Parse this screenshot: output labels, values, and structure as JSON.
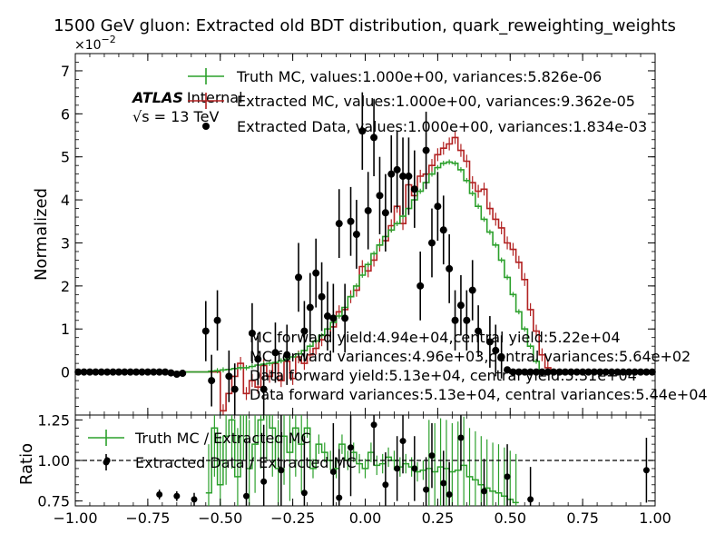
{
  "chart_data": [
    {
      "type": "line",
      "panel": "main",
      "title": "1500 GeV gluon: Extracted old BDT distribution, quark_reweighting_weights",
      "ylabel": "Normalized",
      "y_multiplier": "×10",
      "y_multiplier_exp": "−2",
      "xlim": [
        -1.0,
        1.0
      ],
      "ylim": [
        -1.0,
        7.4
      ],
      "y_ticks": [
        0,
        1,
        2,
        3,
        4,
        5,
        6,
        7
      ],
      "y_tick_labels": [
        "0",
        "1",
        "2",
        "3",
        "4",
        "5",
        "6",
        "7"
      ],
      "atlas_label": "ATLAS",
      "atlas_sublabel": "Internal",
      "energy_label": "√s = 13 TeV",
      "legend": [
        {
          "label": "Truth MC, values:1.000e+00, variances:5.826e-06",
          "color": "#2ca02c",
          "marker": "errorbar-line"
        },
        {
          "label": "Extracted MC, values:1.000e+00, variances:9.362e-05",
          "color": "#b22222",
          "marker": "errorbar-line"
        },
        {
          "label": "Extracted Data, values:1.000e+00, variances:1.834e-03",
          "color": "#000000",
          "marker": "point"
        }
      ],
      "annotations": [
        "MC forward yield:4.94e+04,central yield:5.22e+04",
        "MC forward variances:4.96e+03,central variances:5.64e+02",
        "Data forward yield:5.13e+04, central yield:5.31e+04",
        "Data forward variances:5.13e+04, central variances:5.44e+04"
      ],
      "bin_edges_start": -1.0,
      "bin_width": 0.02,
      "series": [
        {
          "name": "Truth MC",
          "color": "#2ca02c",
          "values": [
            0,
            0,
            0,
            0,
            0,
            0,
            0,
            0,
            0,
            0,
            0,
            0,
            0,
            0,
            0,
            0,
            0,
            0,
            0,
            0,
            0,
            0,
            0,
            0.02,
            0.03,
            0.05,
            0.06,
            0.08,
            0.1,
            0.1,
            0.13,
            0.16,
            0.18,
            0.2,
            0.22,
            0.26,
            0.3,
            0.35,
            0.42,
            0.5,
            0.6,
            0.72,
            0.85,
            1.0,
            1.15,
            1.3,
            1.5,
            1.75,
            2.0,
            2.25,
            2.5,
            2.75,
            2.95,
            3.15,
            3.3,
            3.45,
            3.62,
            3.8,
            4.0,
            4.2,
            4.4,
            4.6,
            4.75,
            4.85,
            4.88,
            4.85,
            4.7,
            4.45,
            4.15,
            3.85,
            3.55,
            3.25,
            2.95,
            2.6,
            2.2,
            1.8,
            1.4,
            1.0,
            0.6,
            0.25,
            0,
            0,
            0,
            0,
            0,
            0,
            0,
            0,
            0,
            0,
            0,
            0,
            0,
            0,
            0,
            0,
            0,
            0,
            0,
            0
          ]
        },
        {
          "name": "Extracted MC",
          "color": "#b22222",
          "values": [
            0,
            0,
            0,
            0,
            0,
            0,
            0,
            0,
            0,
            0,
            0,
            0,
            0,
            0,
            0,
            0,
            0,
            0,
            0,
            0,
            0,
            0,
            0,
            0,
            0,
            -0.9,
            -0.5,
            -0.1,
            0.2,
            -0.5,
            -0.2,
            -0.35,
            0.15,
            -0.1,
            0.2,
            -0.2,
            0.25,
            -0.15,
            0.35,
            0.2,
            0.4,
            0.55,
            0.75,
            0.85,
            1.05,
            1.4,
            1.45,
            1.75,
            1.9,
            2.45,
            2.35,
            2.6,
            2.95,
            3.05,
            3.4,
            3.85,
            3.45,
            4.35,
            4.1,
            4.55,
            4.6,
            4.8,
            5.05,
            5.2,
            5.3,
            5.45,
            5.15,
            4.9,
            4.4,
            4.2,
            4.25,
            3.8,
            3.55,
            3.35,
            3.0,
            2.85,
            2.55,
            2.15,
            1.45,
            0.95,
            0.4,
            0.1,
            0,
            0,
            0,
            0,
            0,
            0,
            0,
            0,
            0,
            0,
            0,
            0,
            0,
            0,
            0,
            0,
            0,
            0
          ]
        },
        {
          "name": "Extracted Data",
          "color": "#000000",
          "points": [
            {
              "x": -0.99,
              "y": 0
            },
            {
              "x": -0.97,
              "y": 0
            },
            {
              "x": -0.95,
              "y": 0
            },
            {
              "x": -0.93,
              "y": 0
            },
            {
              "x": -0.91,
              "y": 0
            },
            {
              "x": -0.89,
              "y": 0
            },
            {
              "x": -0.87,
              "y": 0
            },
            {
              "x": -0.85,
              "y": 0
            },
            {
              "x": -0.83,
              "y": 0
            },
            {
              "x": -0.81,
              "y": 0
            },
            {
              "x": -0.79,
              "y": 0
            },
            {
              "x": -0.77,
              "y": 0
            },
            {
              "x": -0.75,
              "y": 0
            },
            {
              "x": -0.73,
              "y": 0
            },
            {
              "x": -0.71,
              "y": 0
            },
            {
              "x": -0.69,
              "y": 0
            },
            {
              "x": -0.67,
              "y": -0.02
            },
            {
              "x": -0.65,
              "y": -0.05
            },
            {
              "x": -0.63,
              "y": -0.03
            },
            {
              "x": -0.55,
              "y": 0.95,
              "err": 0.7
            },
            {
              "x": -0.53,
              "y": -0.2,
              "err": 0.6
            },
            {
              "x": -0.51,
              "y": 1.2,
              "err": 0.7
            },
            {
              "x": -0.47,
              "y": -0.1,
              "err": 0.6
            },
            {
              "x": -0.45,
              "y": -0.4,
              "err": 0.6
            },
            {
              "x": -0.39,
              "y": 0.9,
              "err": 0.7
            },
            {
              "x": -0.37,
              "y": 0.3,
              "err": 0.6
            },
            {
              "x": -0.35,
              "y": -0.4,
              "err": 0.6
            },
            {
              "x": -0.31,
              "y": 0.45,
              "err": 0.7
            },
            {
              "x": -0.27,
              "y": 0.4,
              "err": 0.7
            },
            {
              "x": -0.23,
              "y": 2.2,
              "err": 0.8
            },
            {
              "x": -0.21,
              "y": 0.95,
              "err": 0.7
            },
            {
              "x": -0.19,
              "y": 1.5,
              "err": 0.8
            },
            {
              "x": -0.17,
              "y": 2.3,
              "err": 0.8
            },
            {
              "x": -0.15,
              "y": 1.75,
              "err": 0.8
            },
            {
              "x": -0.13,
              "y": 1.3,
              "err": 0.8
            },
            {
              "x": -0.11,
              "y": 1.25,
              "err": 0.8
            },
            {
              "x": -0.09,
              "y": 3.45,
              "err": 0.8
            },
            {
              "x": -0.07,
              "y": 1.25,
              "err": 0.8
            },
            {
              "x": -0.05,
              "y": 3.5,
              "err": 0.8
            },
            {
              "x": -0.03,
              "y": 3.2,
              "err": 0.8
            },
            {
              "x": -0.01,
              "y": 5.6,
              "err": 0.9
            },
            {
              "x": 0.01,
              "y": 3.75,
              "err": 0.9
            },
            {
              "x": 0.03,
              "y": 5.45,
              "err": 0.9
            },
            {
              "x": 0.05,
              "y": 4.1,
              "err": 0.9
            },
            {
              "x": 0.07,
              "y": 3.7,
              "err": 0.9
            },
            {
              "x": 0.09,
              "y": 4.6,
              "err": 0.9
            },
            {
              "x": 0.11,
              "y": 4.7,
              "err": 0.9
            },
            {
              "x": 0.13,
              "y": 4.55,
              "err": 0.9
            },
            {
              "x": 0.15,
              "y": 4.55,
              "err": 0.9
            },
            {
              "x": 0.17,
              "y": 4.25,
              "err": 0.9
            },
            {
              "x": 0.19,
              "y": 2.0,
              "err": 0.8
            },
            {
              "x": 0.21,
              "y": 5.15,
              "err": 0.9
            },
            {
              "x": 0.23,
              "y": 3.0,
              "err": 0.8
            },
            {
              "x": 0.25,
              "y": 3.85,
              "err": 0.8
            },
            {
              "x": 0.27,
              "y": 3.3,
              "err": 0.8
            },
            {
              "x": 0.29,
              "y": 2.4,
              "err": 0.8
            },
            {
              "x": 0.31,
              "y": 1.2,
              "err": 0.7
            },
            {
              "x": 0.33,
              "y": 1.55,
              "err": 0.7
            },
            {
              "x": 0.35,
              "y": 1.2,
              "err": 0.7
            },
            {
              "x": 0.37,
              "y": 1.9,
              "err": 0.7
            },
            {
              "x": 0.39,
              "y": 0.95,
              "err": 0.6
            },
            {
              "x": 0.43,
              "y": 0.7,
              "err": 0.6
            },
            {
              "x": 0.45,
              "y": 0.5,
              "err": 0.6
            },
            {
              "x": 0.47,
              "y": 0.35,
              "err": 0.5
            },
            {
              "x": 0.49,
              "y": 0.05
            },
            {
              "x": 0.51,
              "y": 0
            },
            {
              "x": 0.53,
              "y": 0
            },
            {
              "x": 0.55,
              "y": 0
            },
            {
              "x": 0.57,
              "y": 0
            },
            {
              "x": 0.59,
              "y": 0
            },
            {
              "x": 0.61,
              "y": 0
            },
            {
              "x": 0.63,
              "y": 0
            },
            {
              "x": 0.65,
              "y": 0
            },
            {
              "x": 0.67,
              "y": 0
            },
            {
              "x": 0.69,
              "y": 0
            },
            {
              "x": 0.71,
              "y": 0
            },
            {
              "x": 0.73,
              "y": 0
            },
            {
              "x": 0.75,
              "y": 0
            },
            {
              "x": 0.77,
              "y": 0
            },
            {
              "x": 0.79,
              "y": 0
            },
            {
              "x": 0.81,
              "y": 0
            },
            {
              "x": 0.83,
              "y": 0
            },
            {
              "x": 0.85,
              "y": 0
            },
            {
              "x": 0.87,
              "y": 0
            },
            {
              "x": 0.89,
              "y": 0
            },
            {
              "x": 0.91,
              "y": 0
            },
            {
              "x": 0.93,
              "y": 0
            },
            {
              "x": 0.95,
              "y": 0
            },
            {
              "x": 0.97,
              "y": 0
            },
            {
              "x": 0.99,
              "y": 0
            }
          ]
        }
      ]
    },
    {
      "type": "line",
      "panel": "ratio",
      "xlabel": "",
      "ylabel": "Ratio",
      "xlim": [
        -1.0,
        1.0
      ],
      "ylim": [
        0.72,
        1.28
      ],
      "x_ticks": [
        -1.0,
        -0.75,
        -0.5,
        -0.25,
        0.0,
        0.25,
        0.5,
        0.75,
        1.0
      ],
      "x_tick_labels": [
        "−1.00",
        "−0.75",
        "−0.50",
        "−0.25",
        "0.00",
        "0.25",
        "0.50",
        "0.75",
        "1.00"
      ],
      "y_ticks": [
        0.75,
        1.0,
        1.25
      ],
      "y_tick_labels": [
        "0.75",
        "1.00",
        "1.25"
      ],
      "reference_line": 1.0,
      "legend": [
        {
          "label": "Truth MC / Extracted MC",
          "color": "#2ca02c",
          "marker": "errorbar-line"
        },
        {
          "label": "Extracted Data / Extracted MC",
          "color": "#000000",
          "marker": "point"
        }
      ],
      "series": [
        {
          "name": "Truth MC / Extracted MC",
          "color": "#2ca02c",
          "x": [
            -0.54,
            -0.52,
            -0.5,
            -0.48,
            -0.46,
            -0.44,
            -0.42,
            -0.4,
            -0.38,
            -0.36,
            -0.34,
            -0.32,
            -0.3,
            -0.28,
            -0.26,
            -0.24,
            -0.22,
            -0.2,
            -0.18,
            -0.16,
            -0.14,
            -0.12,
            -0.1,
            -0.08,
            -0.06,
            -0.04,
            -0.02,
            0.0,
            0.02,
            0.04,
            0.06,
            0.08,
            0.1,
            0.12,
            0.14,
            0.16,
            0.18,
            0.2,
            0.22,
            0.24,
            0.26,
            0.28,
            0.3,
            0.32,
            0.34,
            0.36,
            0.38,
            0.4,
            0.42,
            0.44,
            0.46,
            0.48,
            0.5,
            0.52
          ],
          "values": [
            0.8,
            1.2,
            0.85,
            1.15,
            1.25,
            0.9,
            1.3,
            0.95,
            1.1,
            1.25,
            1.3,
            1.2,
            0.95,
            1.15,
            1.05,
            1.2,
            1.1,
            1.2,
            0.95,
            1.1,
            1.05,
            1.0,
            0.95,
            1.1,
            1.0,
            1.05,
            0.98,
            0.95,
            1.05,
            0.97,
            0.98,
            1.02,
            1.0,
            0.96,
            0.98,
            0.96,
            0.93,
            0.94,
            0.95,
            0.93,
            0.96,
            0.95,
            0.93,
            0.94,
            0.97,
            0.9,
            0.88,
            0.85,
            0.83,
            0.81,
            0.8,
            0.78,
            0.76,
            0.74
          ]
        },
        {
          "name": "Extracted Data / Extracted MC",
          "color": "#000000",
          "points": [
            {
              "x": -0.89,
              "y": 1.0,
              "err": 0.02
            },
            {
              "x": -0.71,
              "y": 0.79,
              "err": 0.03
            },
            {
              "x": -0.65,
              "y": 0.78,
              "err": 0.03
            },
            {
              "x": -0.59,
              "y": 0.76,
              "err": 0.04
            },
            {
              "x": -0.41,
              "y": 0.78,
              "err": 0.35
            },
            {
              "x": -0.35,
              "y": 0.87,
              "err": 0.35
            },
            {
              "x": -0.29,
              "y": 0.94,
              "err": 0.35
            },
            {
              "x": -0.21,
              "y": 0.8,
              "err": 0.35
            },
            {
              "x": -0.11,
              "y": 0.93,
              "err": 0.3
            },
            {
              "x": -0.09,
              "y": 0.77,
              "err": 0.3
            },
            {
              "x": -0.05,
              "y": 1.08,
              "err": 0.3
            },
            {
              "x": 0.03,
              "y": 1.22,
              "err": 0.25
            },
            {
              "x": 0.07,
              "y": 0.85,
              "err": 0.2
            },
            {
              "x": 0.11,
              "y": 0.95,
              "err": 0.2
            },
            {
              "x": 0.13,
              "y": 1.12,
              "err": 0.2
            },
            {
              "x": 0.17,
              "y": 0.95,
              "err": 0.2
            },
            {
              "x": 0.21,
              "y": 0.82,
              "err": 0.2
            },
            {
              "x": 0.23,
              "y": 1.03,
              "err": 0.2
            },
            {
              "x": 0.27,
              "y": 0.86,
              "err": 0.2
            },
            {
              "x": 0.29,
              "y": 0.79,
              "err": 0.2
            },
            {
              "x": 0.33,
              "y": 1.14,
              "err": 0.2
            },
            {
              "x": 0.49,
              "y": 0.9,
              "err": 0.2
            },
            {
              "x": 0.57,
              "y": 0.76,
              "err": 0.2
            },
            {
              "x": 0.41,
              "y": 0.81,
              "err": 0.2
            },
            {
              "x": 0.97,
              "y": 0.94,
              "err": 0.2
            }
          ]
        }
      ]
    }
  ]
}
